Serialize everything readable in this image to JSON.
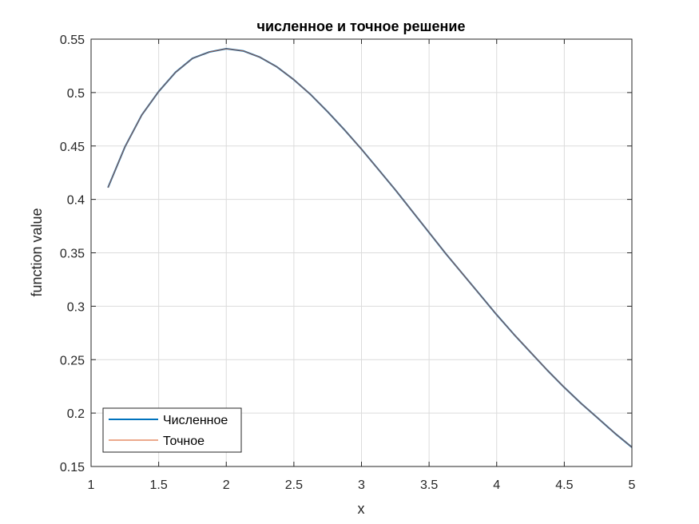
{
  "chart_data": {
    "type": "line",
    "title": "численное и точное решение",
    "xlabel": "x",
    "ylabel": "function value",
    "xlim": [
      1,
      5
    ],
    "ylim": [
      0.15,
      0.55
    ],
    "xticks": [
      1,
      1.5,
      2,
      2.5,
      3,
      3.5,
      4,
      4.5,
      5
    ],
    "xtick_labels": [
      "1",
      "1.5",
      "2",
      "2.5",
      "3",
      "3.5",
      "4",
      "4.5",
      "5"
    ],
    "yticks": [
      0.15,
      0.2,
      0.25,
      0.3,
      0.35,
      0.4,
      0.45,
      0.5,
      0.55
    ],
    "ytick_labels": [
      "0.15",
      "0.2",
      "0.25",
      "0.3",
      "0.35",
      "0.4",
      "0.45",
      "0.5",
      "0.55"
    ],
    "grid": true,
    "legend_position": "bottom-left",
    "x": [
      1.125,
      1.25,
      1.375,
      1.5,
      1.625,
      1.75,
      1.875,
      2.0,
      2.125,
      2.25,
      2.375,
      2.5,
      2.625,
      2.75,
      2.875,
      3.0,
      3.125,
      3.25,
      3.375,
      3.5,
      3.625,
      3.75,
      3.875,
      4.0,
      4.125,
      4.25,
      4.375,
      4.5,
      4.625,
      4.75,
      4.875,
      5.0
    ],
    "series": [
      {
        "name": "Численное",
        "color": "#0072BD",
        "values": [
          0.411,
          0.449,
          0.479,
          0.501,
          0.519,
          0.532,
          0.538,
          0.541,
          0.539,
          0.533,
          0.524,
          0.512,
          0.498,
          0.482,
          0.465,
          0.447,
          0.428,
          0.409,
          0.389,
          0.369,
          0.349,
          0.33,
          0.311,
          0.292,
          0.274,
          0.257,
          0.24,
          0.224,
          0.209,
          0.195,
          0.181,
          0.168
        ]
      },
      {
        "name": "Точное",
        "color": "#D95319",
        "values": [
          0.411,
          0.449,
          0.479,
          0.501,
          0.519,
          0.532,
          0.538,
          0.541,
          0.539,
          0.533,
          0.524,
          0.512,
          0.498,
          0.482,
          0.465,
          0.447,
          0.428,
          0.409,
          0.389,
          0.369,
          0.349,
          0.33,
          0.311,
          0.292,
          0.274,
          0.257,
          0.24,
          0.224,
          0.209,
          0.195,
          0.181,
          0.168
        ]
      }
    ]
  }
}
